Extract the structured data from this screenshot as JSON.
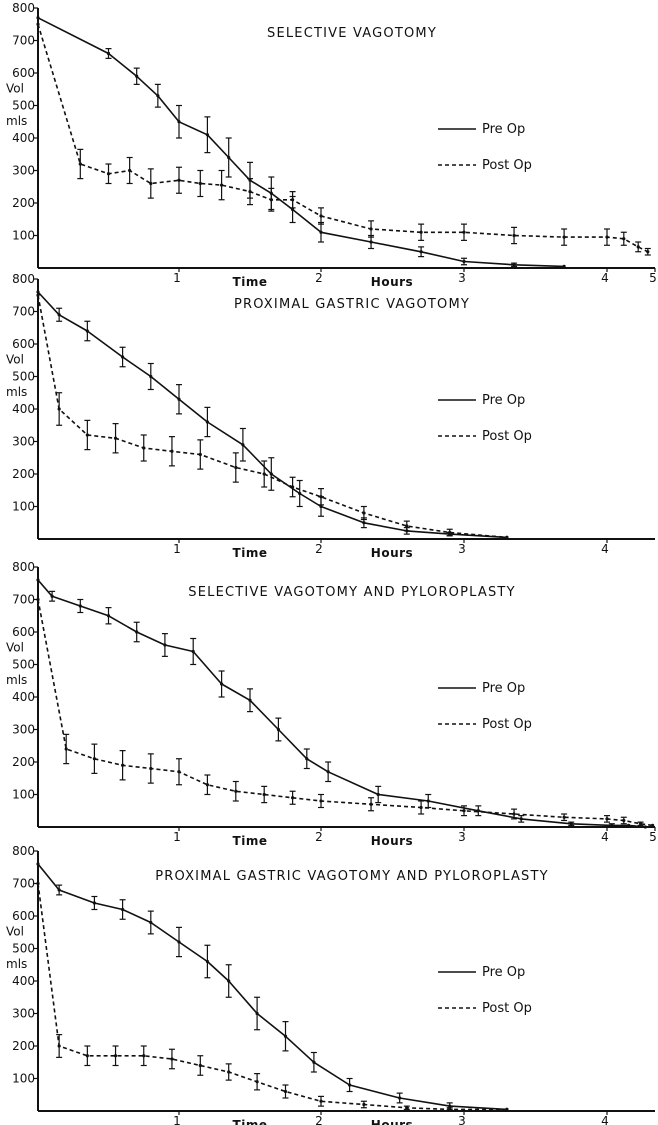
{
  "chart_data": [
    {
      "type": "line",
      "title": "SELECTIVE VAGOTOMY",
      "xlabel": "Time",
      "xunit": "Hours",
      "ylabel": "Vol",
      "yunit": "mls",
      "xlim": [
        0,
        5
      ],
      "ylim": [
        0,
        800
      ],
      "x_ticks": [
        "1",
        "2",
        "3",
        "4",
        "5"
      ],
      "y_ticks": [
        "100",
        "200",
        "300",
        "400",
        "500",
        "600",
        "700",
        "800"
      ],
      "legend": [
        "Pre Op",
        "Post Op"
      ],
      "series": [
        {
          "name": "Pre Op",
          "style": "solid",
          "x": [
            0,
            0.5,
            0.7,
            0.85,
            1.0,
            1.2,
            1.35,
            1.5,
            1.65,
            1.8,
            2.0,
            2.35,
            2.7,
            3.0,
            3.35,
            3.7
          ],
          "y": [
            770,
            660,
            590,
            530,
            450,
            410,
            340,
            270,
            230,
            180,
            110,
            80,
            50,
            20,
            10,
            5
          ],
          "err": [
            0,
            15,
            25,
            35,
            50,
            55,
            60,
            55,
            50,
            40,
            30,
            20,
            15,
            10,
            5,
            0
          ]
        },
        {
          "name": "Post Op",
          "style": "dashed",
          "x": [
            0,
            0.3,
            0.5,
            0.65,
            0.8,
            1.0,
            1.15,
            1.3,
            1.5,
            1.65,
            1.8,
            2.0,
            2.35,
            2.7,
            3.0,
            3.35,
            3.7,
            4.0,
            4.35,
            4.65,
            4.85
          ],
          "y": [
            750,
            320,
            290,
            300,
            260,
            270,
            260,
            255,
            235,
            210,
            210,
            160,
            120,
            110,
            110,
            100,
            95,
            95,
            90,
            65,
            50
          ],
          "err": [
            0,
            45,
            30,
            40,
            45,
            40,
            40,
            45,
            40,
            35,
            25,
            25,
            25,
            25,
            25,
            25,
            25,
            25,
            20,
            15,
            10
          ]
        }
      ]
    },
    {
      "type": "line",
      "title": "PROXIMAL GASTRIC VAGOTOMY",
      "xlabel": "Time",
      "xunit": "Hours",
      "ylabel": "Vol",
      "yunit": "mls",
      "xlim": [
        0,
        5
      ],
      "ylim": [
        0,
        800
      ],
      "x_ticks": [
        "1",
        "2",
        "3",
        "4"
      ],
      "y_ticks": [
        "100",
        "200",
        "300",
        "400",
        "500",
        "600",
        "700",
        "800"
      ],
      "legend": [
        "Pre Op",
        "Post Op"
      ],
      "series": [
        {
          "name": "Pre Op",
          "style": "solid",
          "x": [
            0,
            0.15,
            0.35,
            0.6,
            0.8,
            1.0,
            1.2,
            1.45,
            1.65,
            1.85,
            2.0,
            2.3,
            2.6,
            2.9,
            3.3
          ],
          "y": [
            760,
            690,
            640,
            560,
            500,
            430,
            360,
            290,
            200,
            140,
            100,
            50,
            25,
            15,
            5
          ],
          "err": [
            0,
            20,
            30,
            30,
            40,
            45,
            45,
            50,
            50,
            40,
            30,
            15,
            10,
            5,
            0
          ]
        },
        {
          "name": "Post Op",
          "style": "dashed",
          "x": [
            0,
            0.15,
            0.35,
            0.55,
            0.75,
            0.95,
            1.15,
            1.4,
            1.6,
            1.8,
            2.0,
            2.3,
            2.6,
            2.9,
            3.3
          ],
          "y": [
            750,
            400,
            320,
            310,
            280,
            270,
            260,
            220,
            200,
            160,
            130,
            80,
            40,
            20,
            5
          ],
          "err": [
            0,
            50,
            45,
            45,
            40,
            45,
            45,
            45,
            40,
            30,
            25,
            20,
            15,
            10,
            0
          ]
        }
      ]
    },
    {
      "type": "line",
      "title": "SELECTIVE VAGOTOMY AND PYLOROPLASTY",
      "xlabel": "Time",
      "xunit": "Hours",
      "ylabel": "Vol",
      "yunit": "mls",
      "xlim": [
        0,
        5
      ],
      "ylim": [
        0,
        800
      ],
      "x_ticks": [
        "1",
        "2",
        "3",
        "4",
        "5"
      ],
      "y_ticks": [
        "100",
        "200",
        "300",
        "400",
        "500",
        "600",
        "700",
        "800"
      ],
      "legend": [
        "Pre Op",
        "Post Op"
      ],
      "series": [
        {
          "name": "Pre Op",
          "style": "solid",
          "x": [
            0,
            0.1,
            0.3,
            0.5,
            0.7,
            0.9,
            1.1,
            1.3,
            1.5,
            1.7,
            1.9,
            2.05,
            2.4,
            2.75,
            3.1,
            3.4,
            3.75,
            4.1,
            4.45,
            4.8
          ],
          "y": [
            760,
            710,
            680,
            650,
            600,
            560,
            540,
            440,
            390,
            300,
            210,
            170,
            100,
            80,
            50,
            25,
            10,
            5,
            5,
            0
          ],
          "err": [
            0,
            15,
            20,
            25,
            30,
            35,
            40,
            40,
            35,
            35,
            30,
            30,
            25,
            20,
            15,
            10,
            5,
            5,
            0,
            0
          ]
        },
        {
          "name": "Post Op",
          "style": "dashed",
          "x": [
            0,
            0.2,
            0.4,
            0.6,
            0.8,
            1.0,
            1.2,
            1.4,
            1.6,
            1.8,
            2.0,
            2.35,
            2.7,
            3.0,
            3.35,
            3.7,
            4.0,
            4.35,
            4.7,
            4.95
          ],
          "y": [
            700,
            240,
            210,
            190,
            180,
            170,
            130,
            110,
            100,
            90,
            80,
            70,
            60,
            50,
            40,
            30,
            25,
            20,
            10,
            5
          ],
          "err": [
            0,
            45,
            45,
            45,
            45,
            40,
            30,
            30,
            25,
            20,
            20,
            20,
            20,
            15,
            15,
            10,
            10,
            10,
            5,
            0
          ]
        }
      ]
    },
    {
      "type": "line",
      "title": "PROXIMAL GASTRIC VAGOTOMY AND PYLOROPLASTY",
      "xlabel": "Time",
      "xunit": "Hours",
      "ylabel": "Vol",
      "yunit": "mls",
      "xlim": [
        0,
        5
      ],
      "ylim": [
        0,
        800
      ],
      "x_ticks": [
        "1",
        "2",
        "3",
        "4"
      ],
      "y_ticks": [
        "100",
        "200",
        "300",
        "400",
        "500",
        "600",
        "700",
        "800"
      ],
      "legend": [
        "Pre Op",
        "Post Op"
      ],
      "series": [
        {
          "name": "Pre Op",
          "style": "solid",
          "x": [
            0,
            0.15,
            0.4,
            0.6,
            0.8,
            1.0,
            1.2,
            1.35,
            1.55,
            1.75,
            1.95,
            2.2,
            2.55,
            2.9,
            3.3
          ],
          "y": [
            760,
            680,
            640,
            620,
            580,
            520,
            460,
            400,
            300,
            230,
            150,
            80,
            40,
            15,
            5
          ],
          "err": [
            0,
            15,
            20,
            30,
            35,
            45,
            50,
            50,
            50,
            45,
            30,
            20,
            15,
            10,
            0
          ]
        },
        {
          "name": "Post Op",
          "style": "dashed",
          "x": [
            0,
            0.15,
            0.35,
            0.55,
            0.75,
            0.95,
            1.15,
            1.35,
            1.55,
            1.75,
            2.0,
            2.3,
            2.6,
            2.9,
            3.3
          ],
          "y": [
            700,
            200,
            170,
            170,
            170,
            160,
            140,
            120,
            90,
            60,
            30,
            20,
            10,
            5,
            5
          ],
          "err": [
            0,
            35,
            30,
            30,
            30,
            30,
            30,
            25,
            25,
            20,
            15,
            10,
            5,
            5,
            0
          ]
        }
      ]
    }
  ]
}
